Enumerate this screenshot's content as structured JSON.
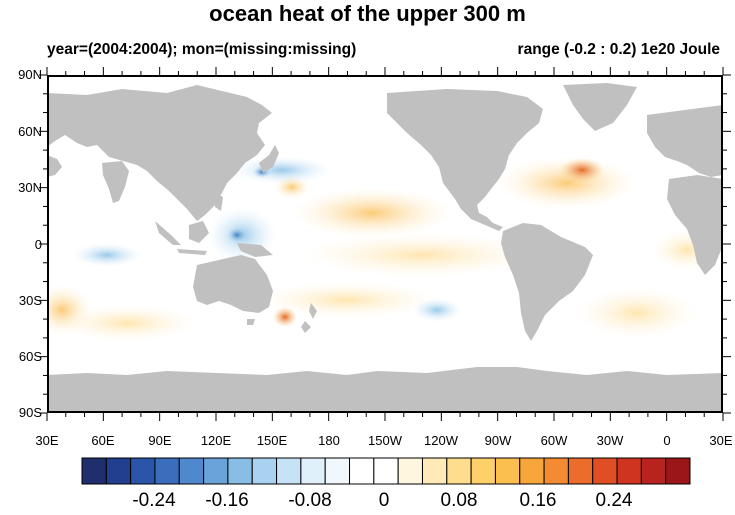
{
  "title": "ocean heat of the upper 300 m",
  "subtitle_left": "year=(2004:2004); mon=(missing:missing)",
  "subtitle_right": "range (-0.2 : 0.2) 1e20 Joule",
  "y_axis_labels": [
    "90N",
    "60N",
    "30N",
    "0",
    "30S",
    "60S",
    "90S"
  ],
  "x_axis_labels": [
    "30E",
    "60E",
    "90E",
    "120E",
    "150E",
    "180",
    "150W",
    "120W",
    "90W",
    "60W",
    "30W",
    "0",
    "30E"
  ],
  "colorbar": {
    "colors": [
      "#1f2f6e",
      "#223f8f",
      "#2a55a8",
      "#3a6ebc",
      "#4f88cc",
      "#69a3d9",
      "#88bde5",
      "#a8d2ef",
      "#c6e3f6",
      "#dff0fa",
      "#f0f8fd",
      "#ffffff",
      "#ffffff",
      "#fff6e0",
      "#ffeab8",
      "#ffdd8e",
      "#fdd06a",
      "#fbbf4f",
      "#f8a63c",
      "#f38b33",
      "#ec6d2b",
      "#e04f24",
      "#cf3420",
      "#b8221f",
      "#9a1619"
    ],
    "tick_labels": [
      "-0.24",
      "-0.16",
      "-0.08",
      "0",
      "0.08",
      "0.16",
      "0.24"
    ]
  },
  "map": {
    "land_color": "#c0c0c0",
    "ocean_color": "#ffffff"
  }
}
